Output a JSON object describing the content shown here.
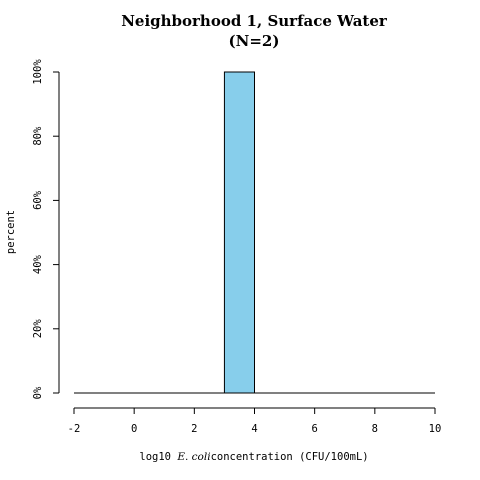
{
  "chart_data": {
    "type": "bar",
    "title": "Neighborhood 1, Surface Water",
    "subtitle": "(N=2)",
    "xlabel_parts": [
      "log10 ",
      "E. coli",
      "concentration (CFU/100mL)"
    ],
    "ylabel": "percent",
    "x_ticks": [
      -2,
      0,
      2,
      4,
      6,
      8,
      10
    ],
    "x_tick_labels": [
      "-2",
      "0",
      "2",
      "4",
      "6",
      "8",
      "10"
    ],
    "y_ticks": [
      0,
      20,
      40,
      60,
      80,
      100
    ],
    "y_tick_labels": [
      "0%",
      "20%",
      "40%",
      "60%",
      "80%",
      "100%"
    ],
    "xlim": [
      -2,
      10
    ],
    "ylim": [
      0,
      100
    ],
    "bins": [
      {
        "start": 3,
        "end": 4,
        "value": 100
      }
    ],
    "bar_color": "#87ceeb",
    "grid": false,
    "legend": "none"
  }
}
